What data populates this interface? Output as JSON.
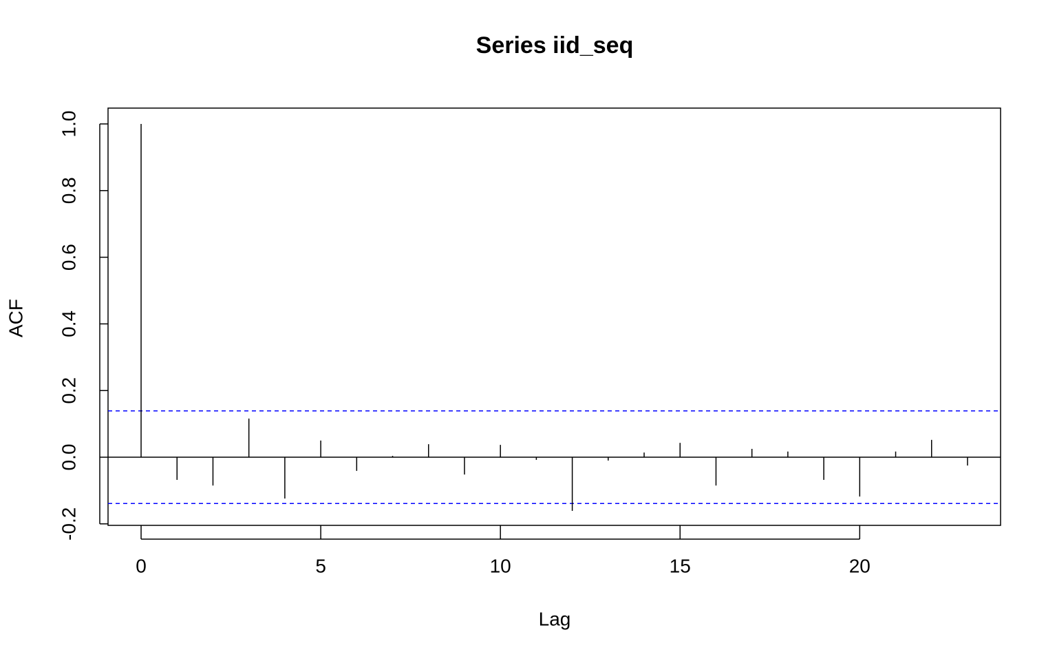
{
  "chart_data": {
    "type": "bar",
    "title": "Series  iid_seq",
    "x_label": "Lag",
    "y_label": "ACF",
    "x": [
      0,
      1,
      2,
      3,
      4,
      5,
      6,
      7,
      8,
      9,
      10,
      11,
      12,
      13,
      14,
      15,
      16,
      17,
      18,
      19,
      20,
      21,
      22,
      23
    ],
    "values": [
      1.0,
      -0.068,
      -0.085,
      0.116,
      -0.124,
      0.05,
      -0.041,
      0.004,
      0.039,
      -0.052,
      0.037,
      -0.008,
      -0.161,
      -0.01,
      0.014,
      0.043,
      -0.085,
      0.025,
      0.017,
      -0.068,
      -0.118,
      0.017,
      0.052,
      -0.025
    ],
    "color": "#000000",
    "confidence_bounds": {
      "values": [
        0.139,
        -0.139
      ],
      "color": "#0000ff"
    },
    "xlim": [
      -0.92,
      23.92
    ],
    "xticks": [
      0,
      5,
      10,
      15,
      20
    ],
    "ylim": [
      -0.2045,
      1.0475
    ],
    "yticks": [
      {
        "value": -0.2,
        "label": "-0.2"
      },
      {
        "value": 0,
        "label": "0.0"
      },
      0.2,
      0.4,
      0.6,
      0.8,
      {
        "value": 1,
        "label": "1.0"
      }
    ]
  }
}
